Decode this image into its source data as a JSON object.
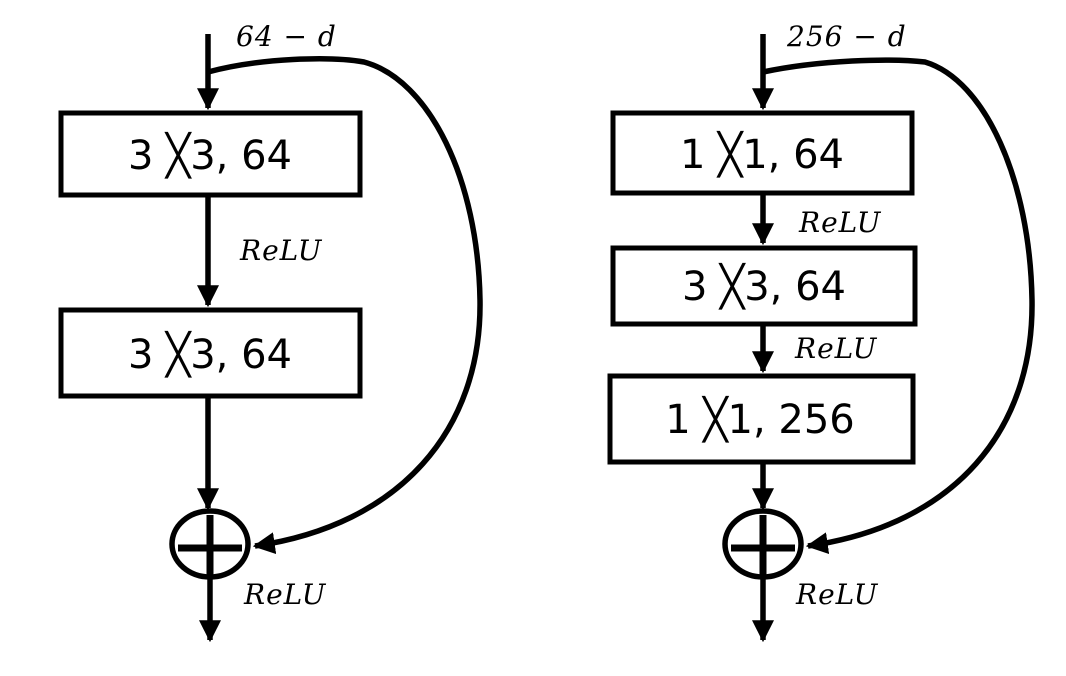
{
  "left_block": {
    "input_label": "64 − d",
    "layers": [
      "3 ╳3, 64",
      "3 ╳3, 64"
    ],
    "relu_labels": [
      "ReLU",
      "ReLU"
    ]
  },
  "right_block": {
    "input_label": "256 − d",
    "layers": [
      "1 ╳1, 64",
      "3 ╳3, 64",
      "1 ╳1, 256"
    ],
    "relu_labels": [
      "ReLU",
      "ReLU",
      "ReLU"
    ]
  },
  "colors": {
    "stroke": "#000000",
    "background": "#ffffff"
  },
  "icons": {
    "sum": "circled-plus-icon"
  }
}
